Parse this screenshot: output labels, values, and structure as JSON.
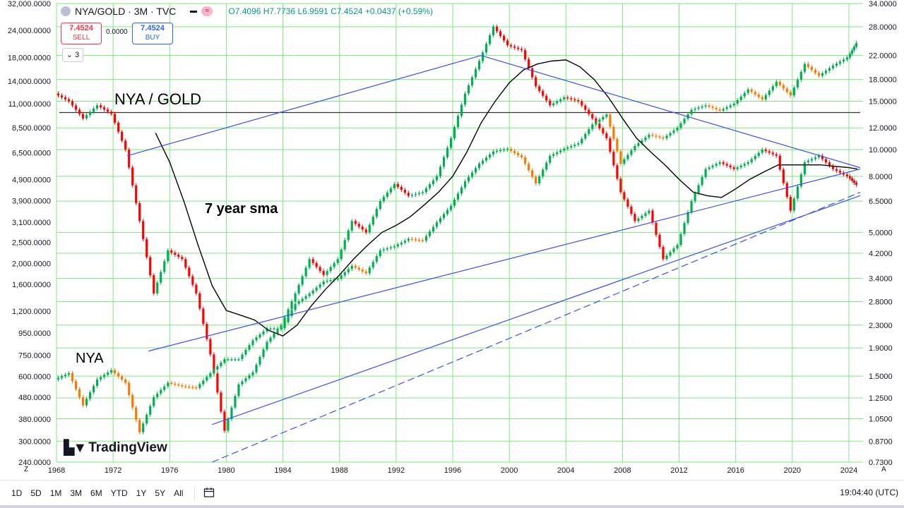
{
  "header": {
    "symbol": "NYA/GOLD · 3M · TVC",
    "ohlc": "O7.4096 H7.7736 L6.9591 C7.4524 +0.0437 (+0.59%)",
    "sell_price": "7.4524",
    "sell_label": "SELL",
    "spread": "0.0000",
    "buy_price": "7.4524",
    "buy_label": "BUY",
    "indicator_count": "3"
  },
  "annotations": {
    "nya_gold": "NYA / GOLD",
    "sma": "7 year sma",
    "nya": "NYA"
  },
  "logo": "TradingView",
  "bottom_bar": {
    "ranges": [
      "1D",
      "5D",
      "1M",
      "3M",
      "6M",
      "YTD",
      "1Y",
      "5Y",
      "All"
    ],
    "clock": "19:04:40 (UTC)",
    "corner_left": "Z",
    "corner_right": "A"
  },
  "colors": {
    "grid": "#7ee87e",
    "up": "#00b050",
    "down": "#ff0000",
    "trendline": "#3a4ff0",
    "sma": "#000000",
    "nya_up": "#00b050",
    "nya_down": "#ff7700"
  },
  "chart_data": {
    "type": "candlestick",
    "x_range": [
      1968,
      2025
    ],
    "x_ticks": [
      "1968",
      "1972",
      "1976",
      "1980",
      "1984",
      "1988",
      "1992",
      "1996",
      "2000",
      "2004",
      "2008",
      "2012",
      "2016",
      "2020",
      "2024"
    ],
    "left_axis": {
      "scale": "log",
      "ticks": [
        "32,000.0000",
        "24,000.0000",
        "18,000.0000",
        "14,000.0000",
        "11,000.0000",
        "8,500.0000",
        "6,500.0000",
        "4,900.0000",
        "3,900.0000",
        "3,100.0000",
        "2,500.0000",
        "2,000.0000",
        "1,600.0000",
        "1,200.0000",
        "950.0000",
        "750.0000",
        "600.0000",
        "480.0000",
        "380.0000",
        "300.0000",
        "240.0000"
      ]
    },
    "right_axis": {
      "scale": "log",
      "ticks": [
        "34.0000",
        "28.0000",
        "22.0000",
        "18.0000",
        "15.0000",
        "12.0000",
        "10.0000",
        "8.0000",
        "6.5000",
        "5.0000",
        "4.2000",
        "3.4000",
        "2.8000",
        "2.3000",
        "1.9000",
        "1.5000",
        "1.2500",
        "1.0500",
        "0.8700",
        "0.7300"
      ]
    },
    "horizontal_line_left_value": 10000,
    "series": [
      {
        "name": "NYA / GOLD",
        "axis": "right",
        "points": [
          [
            1968,
            16.0
          ],
          [
            1969,
            15.0
          ],
          [
            1970,
            13.0
          ],
          [
            1971,
            14.5
          ],
          [
            1972,
            13.5
          ],
          [
            1973,
            10.0
          ],
          [
            1974,
            5.5
          ],
          [
            1975,
            3.0
          ],
          [
            1976,
            4.3
          ],
          [
            1977,
            4.0
          ],
          [
            1978,
            3.0
          ],
          [
            1979,
            1.8
          ],
          [
            1980,
            0.95
          ],
          [
            1981,
            1.4
          ],
          [
            1982,
            1.55
          ],
          [
            1983,
            2.0
          ],
          [
            1984,
            2.3
          ],
          [
            1985,
            3.0
          ],
          [
            1986,
            4.0
          ],
          [
            1987,
            3.5
          ],
          [
            1988,
            4.0
          ],
          [
            1989,
            5.5
          ],
          [
            1990,
            5.0
          ],
          [
            1991,
            6.5
          ],
          [
            1992,
            7.5
          ],
          [
            1993,
            6.8
          ],
          [
            1994,
            7.0
          ],
          [
            1995,
            8.0
          ],
          [
            1996,
            11.0
          ],
          [
            1997,
            16.0
          ],
          [
            1998,
            21.0
          ],
          [
            1999,
            28.0
          ],
          [
            2000,
            24.0
          ],
          [
            2001,
            23.0
          ],
          [
            2002,
            17.0
          ],
          [
            2003,
            14.5
          ],
          [
            2004,
            15.5
          ],
          [
            2005,
            15.0
          ],
          [
            2006,
            13.0
          ],
          [
            2007,
            11.0
          ],
          [
            2008,
            7.0
          ],
          [
            2009,
            5.5
          ],
          [
            2010,
            6.0
          ],
          [
            2011,
            4.0
          ],
          [
            2012,
            4.5
          ],
          [
            2013,
            6.5
          ],
          [
            2014,
            8.5
          ],
          [
            2015,
            9.0
          ],
          [
            2016,
            8.5
          ],
          [
            2017,
            9.0
          ],
          [
            2018,
            10.0
          ],
          [
            2019,
            9.5
          ],
          [
            2020,
            6.0
          ],
          [
            2021,
            9.0
          ],
          [
            2022,
            9.5
          ],
          [
            2023,
            8.5
          ],
          [
            2024,
            8.0
          ],
          [
            2024.6,
            7.45
          ]
        ]
      },
      {
        "name": "NYA",
        "axis": "left",
        "points": [
          [
            1968,
            580
          ],
          [
            1969,
            620
          ],
          [
            1970,
            440
          ],
          [
            1971,
            580
          ],
          [
            1972,
            640
          ],
          [
            1973,
            560
          ],
          [
            1974,
            330
          ],
          [
            1975,
            480
          ],
          [
            1976,
            560
          ],
          [
            1977,
            540
          ],
          [
            1978,
            530
          ],
          [
            1979,
            620
          ],
          [
            1980,
            720
          ],
          [
            1981,
            720
          ],
          [
            1982,
            880
          ],
          [
            1983,
            1000
          ],
          [
            1984,
            1000
          ],
          [
            1985,
            1300
          ],
          [
            1986,
            1450
          ],
          [
            1987,
            1650
          ],
          [
            1988,
            1700
          ],
          [
            1989,
            1950
          ],
          [
            1990,
            1800
          ],
          [
            1991,
            2300
          ],
          [
            1992,
            2400
          ],
          [
            1993,
            2600
          ],
          [
            1994,
            2550
          ],
          [
            1995,
            3100
          ],
          [
            1996,
            3700
          ],
          [
            1997,
            4800
          ],
          [
            1998,
            5800
          ],
          [
            1999,
            6600
          ],
          [
            2000,
            6800
          ],
          [
            2001,
            6200
          ],
          [
            2002,
            4700
          ],
          [
            2003,
            6300
          ],
          [
            2004,
            6800
          ],
          [
            2005,
            7200
          ],
          [
            2006,
            8800
          ],
          [
            2007,
            9800
          ],
          [
            2008,
            5800
          ],
          [
            2009,
            7000
          ],
          [
            2010,
            7900
          ],
          [
            2011,
            7600
          ],
          [
            2012,
            8500
          ],
          [
            2013,
            10300
          ],
          [
            2014,
            10800
          ],
          [
            2015,
            10200
          ],
          [
            2016,
            11000
          ],
          [
            2017,
            12800
          ],
          [
            2018,
            11500
          ],
          [
            2019,
            13900
          ],
          [
            2020,
            12000
          ],
          [
            2021,
            16800
          ],
          [
            2022,
            14800
          ],
          [
            2023,
            16500
          ],
          [
            2024,
            18000
          ],
          [
            2024.6,
            21000
          ]
        ]
      },
      {
        "name": "7 year sma",
        "axis": "right",
        "points": [
          [
            1975,
            11.5
          ],
          [
            1976,
            9.0
          ],
          [
            1977,
            6.5
          ],
          [
            1978,
            4.5
          ],
          [
            1979,
            3.2
          ],
          [
            1980,
            2.6
          ],
          [
            1981,
            2.5
          ],
          [
            1982,
            2.4
          ],
          [
            1983,
            2.2
          ],
          [
            1984,
            2.1
          ],
          [
            1985,
            2.3
          ],
          [
            1986,
            2.7
          ],
          [
            1987,
            3.1
          ],
          [
            1988,
            3.5
          ],
          [
            1989,
            4.0
          ],
          [
            1990,
            4.5
          ],
          [
            1991,
            5.0
          ],
          [
            1992,
            5.3
          ],
          [
            1993,
            5.7
          ],
          [
            1994,
            6.3
          ],
          [
            1995,
            7.0
          ],
          [
            1996,
            8.0
          ],
          [
            1997,
            9.8
          ],
          [
            1998,
            12.5
          ],
          [
            1999,
            15.0
          ],
          [
            2000,
            17.5
          ],
          [
            2001,
            19.5
          ],
          [
            2002,
            20.5
          ],
          [
            2003,
            21.0
          ],
          [
            2004,
            21.2
          ],
          [
            2005,
            20.0
          ],
          [
            2006,
            18.0
          ],
          [
            2007,
            15.5
          ],
          [
            2008,
            13.0
          ],
          [
            2009,
            11.0
          ],
          [
            2010,
            9.8
          ],
          [
            2011,
            8.8
          ],
          [
            2012,
            7.8
          ],
          [
            2013,
            7.0
          ],
          [
            2014,
            6.8
          ],
          [
            2015,
            6.7
          ],
          [
            2016,
            7.2
          ],
          [
            2017,
            7.8
          ],
          [
            2018,
            8.3
          ],
          [
            2019,
            8.8
          ],
          [
            2020,
            8.8
          ],
          [
            2021,
            8.8
          ],
          [
            2022,
            8.8
          ],
          [
            2023,
            8.7
          ],
          [
            2024,
            8.6
          ],
          [
            2024.6,
            8.5
          ]
        ]
      }
    ],
    "trendlines": [
      {
        "axis": "right",
        "style": "solid",
        "from": [
          1974.5,
          1.85
        ],
        "to": [
          2024.8,
          8.5
        ]
      },
      {
        "axis": "right",
        "style": "solid",
        "from": [
          1973,
          9.5
        ],
        "to": [
          1998,
          22.0
        ]
      },
      {
        "axis": "right",
        "style": "solid",
        "from": [
          1998,
          22.0
        ],
        "to": [
          2024.8,
          8.6
        ]
      },
      {
        "axis": "right",
        "style": "solid",
        "from": [
          1979,
          1.0
        ],
        "to": [
          2024.8,
          6.8
        ]
      },
      {
        "axis": "right",
        "style": "dashed",
        "from": [
          1979,
          0.73
        ],
        "to": [
          2024.8,
          7.0
        ]
      }
    ]
  }
}
